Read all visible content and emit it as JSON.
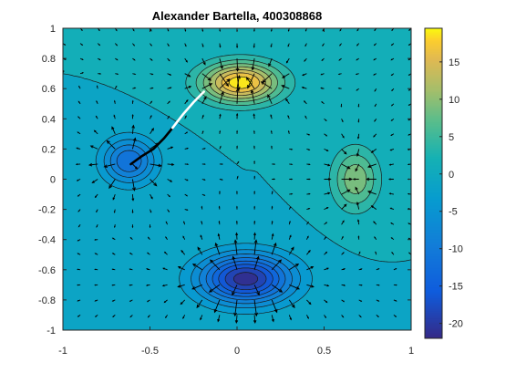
{
  "chart_data": {
    "type": "heatmap",
    "subtype": "filled-contour with gradient quiver arrows and path lines",
    "title": "Alexander Bartella, 400308868",
    "xlabel": "",
    "ylabel": "",
    "xlim": [
      -1,
      1
    ],
    "ylim": [
      -1,
      1
    ],
    "x_ticks": [
      -1,
      -0.5,
      0,
      0.5,
      1
    ],
    "x_tick_labels": [
      "-1",
      "-0.5",
      "0",
      "0.5",
      "1"
    ],
    "y_ticks": [
      1,
      0.8,
      0.6,
      0.4,
      0.2,
      0,
      -0.2,
      -0.4,
      -0.6,
      -0.8,
      -1
    ],
    "y_tick_labels": [
      "1",
      "0.8",
      "0.6",
      "0.4",
      "0.2",
      "0",
      "-0.2",
      "-0.4",
      "-0.6",
      "-0.8",
      "-1"
    ],
    "colorbar": {
      "colormap": "parula",
      "limits": [
        -22,
        19.5
      ],
      "ticks": [
        15,
        10,
        5,
        0,
        -5,
        -10,
        -15,
        -20
      ],
      "tick_labels": [
        "15",
        "10",
        "5",
        "0",
        "-5",
        "-10",
        "-15",
        "-20"
      ]
    },
    "field_extrema": [
      {
        "label": "maximum",
        "x": 0.02,
        "y": 0.64,
        "value": 19.2
      },
      {
        "label": "maximum",
        "x": 0.68,
        "y": 0.0,
        "value": 9.5
      },
      {
        "label": "minimum",
        "x": 0.05,
        "y": -0.66,
        "value": -21.5
      },
      {
        "label": "minimum",
        "x": -0.62,
        "y": 0.12,
        "value": -12.5
      }
    ],
    "paths": [
      {
        "color": "#000000",
        "points": [
          [
            -0.61,
            0.1
          ],
          [
            -0.55,
            0.15
          ],
          [
            -0.48,
            0.2
          ],
          [
            -0.42,
            0.27
          ],
          [
            -0.37,
            0.34
          ]
        ]
      },
      {
        "color": "#ffffff",
        "points": [
          [
            -0.37,
            0.34
          ],
          [
            -0.31,
            0.43
          ],
          [
            -0.25,
            0.51
          ],
          [
            -0.19,
            0.58
          ]
        ]
      }
    ],
    "grid": false,
    "legend": "colorbar-right"
  }
}
